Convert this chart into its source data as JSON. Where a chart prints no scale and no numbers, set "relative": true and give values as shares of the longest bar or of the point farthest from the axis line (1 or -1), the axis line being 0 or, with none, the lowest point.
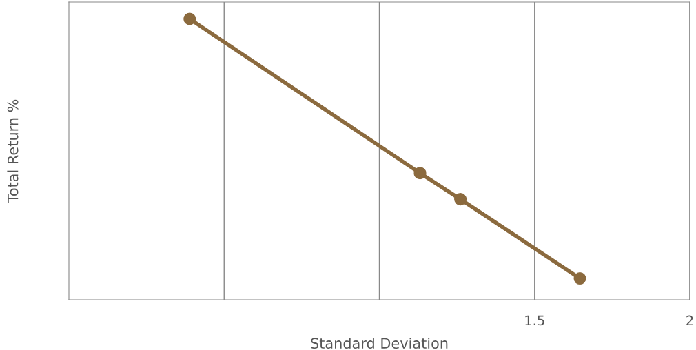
{
  "chart_data": {
    "type": "line",
    "xlabel": "Standard Deviation",
    "ylabel": "Total Return %",
    "x": [
      0.389,
      1.131,
      1.261,
      1.646
    ],
    "series": [
      {
        "color": "#8b6a3e",
        "values": [
          1,
          0.451,
          0.358,
          0.076
        ]
      }
    ],
    "relative": true,
    "xlim": [
      0,
      2
    ],
    "xticks": [
      {
        "value": 0.5,
        "label": null
      },
      {
        "value": 1,
        "label": null
      },
      1.5,
      2
    ],
    "grid": "x",
    "marker": "circle",
    "line_style": "solid"
  }
}
